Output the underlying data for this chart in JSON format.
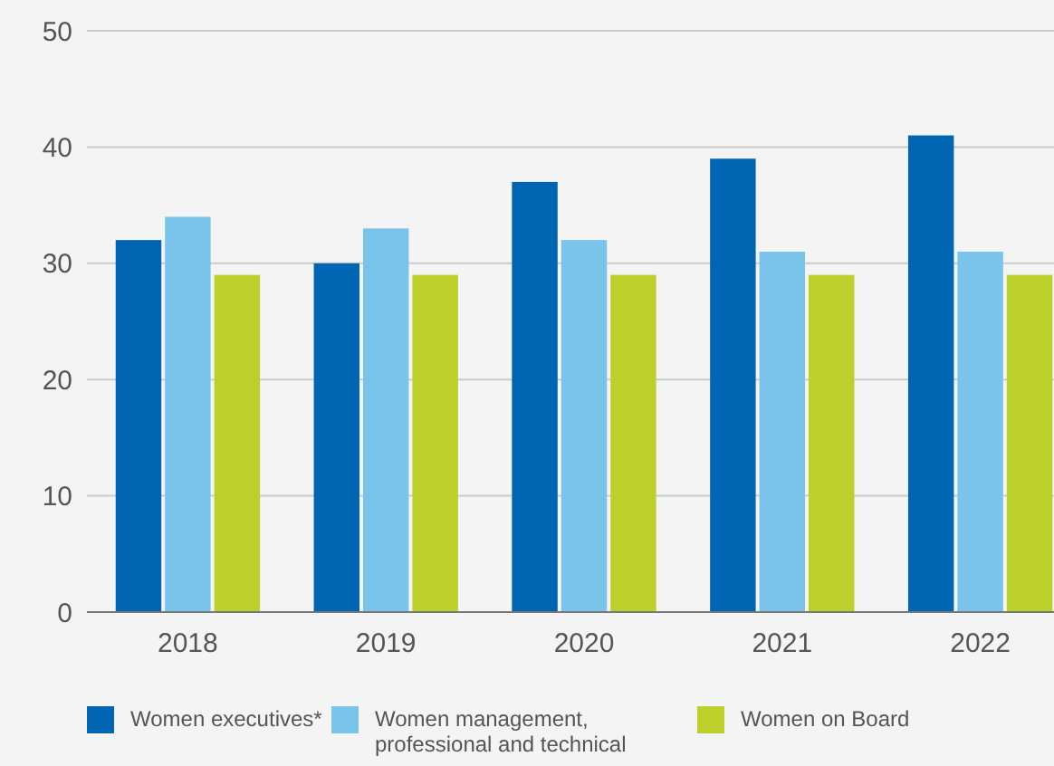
{
  "chart_data": {
    "type": "bar",
    "categories": [
      "2018",
      "2019",
      "2020",
      "2021",
      "2022"
    ],
    "series": [
      {
        "name": "Women executives*",
        "color": "#0066b3",
        "values": [
          32,
          30,
          37,
          39,
          41
        ]
      },
      {
        "name": "Women management, professional and technical",
        "color": "#7ac3ea",
        "values": [
          34,
          33,
          32,
          31,
          31
        ]
      },
      {
        "name": "Women on Board",
        "color": "#bccf2a",
        "values": [
          29,
          29,
          29,
          29,
          29
        ]
      }
    ],
    "ylim": [
      0,
      50
    ],
    "yticks": [
      0,
      10,
      20,
      30,
      40,
      50
    ],
    "grid": "y",
    "legend": "bottom"
  }
}
